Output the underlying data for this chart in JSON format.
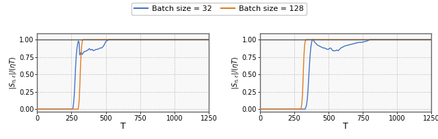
{
  "legend_labels": [
    "Batch size = 32",
    "Batch size = 128"
  ],
  "xlabel": "T",
  "xlim": [
    0,
    1250
  ],
  "yticks": [
    0.0,
    0.25,
    0.5,
    0.75,
    1.0
  ],
  "xticks": [
    0,
    250,
    500,
    750,
    1000,
    1250
  ],
  "left_blue_x": [
    0,
    259,
    260,
    265,
    270,
    275,
    280,
    285,
    290,
    295,
    300,
    305,
    310,
    315,
    320,
    325,
    330,
    335,
    340,
    345,
    350,
    360,
    370,
    380,
    390,
    400,
    410,
    420,
    430,
    440,
    450,
    460,
    470,
    480,
    490,
    500,
    520,
    600,
    700,
    800,
    900,
    1000,
    1100,
    1200,
    1250
  ],
  "left_blue_y": [
    0.0,
    0.0,
    0.01,
    0.08,
    0.2,
    0.4,
    0.62,
    0.78,
    0.88,
    0.94,
    0.98,
    0.96,
    0.78,
    0.8,
    0.82,
    0.79,
    0.79,
    0.81,
    0.82,
    0.83,
    0.83,
    0.84,
    0.85,
    0.87,
    0.85,
    0.86,
    0.84,
    0.85,
    0.86,
    0.86,
    0.87,
    0.88,
    0.88,
    0.9,
    0.93,
    0.97,
    1.0,
    1.0,
    1.0,
    1.0,
    1.0,
    1.0,
    1.0,
    1.0,
    1.0
  ],
  "left_orange_x": [
    0,
    299,
    300,
    305,
    310,
    315,
    320,
    325,
    330,
    335,
    340,
    350,
    360,
    400,
    500,
    1250
  ],
  "left_orange_y": [
    0.0,
    0.0,
    0.02,
    0.1,
    0.3,
    0.58,
    0.8,
    0.93,
    0.99,
    1.0,
    1.0,
    1.0,
    1.0,
    1.0,
    1.0,
    1.0
  ],
  "right_blue_x": [
    0,
    329,
    330,
    335,
    340,
    345,
    350,
    355,
    360,
    365,
    370,
    375,
    380,
    385,
    390,
    395,
    400,
    410,
    420,
    430,
    440,
    450,
    460,
    470,
    480,
    490,
    500,
    510,
    520,
    530,
    540,
    550,
    560,
    570,
    580,
    590,
    600,
    620,
    640,
    660,
    680,
    700,
    720,
    740,
    760,
    780,
    800,
    900,
    1000,
    1100,
    1200,
    1250
  ],
  "right_blue_y": [
    0.0,
    0.0,
    0.01,
    0.03,
    0.07,
    0.15,
    0.28,
    0.45,
    0.62,
    0.77,
    0.88,
    0.95,
    0.99,
    1.0,
    1.0,
    0.97,
    0.96,
    0.94,
    0.92,
    0.91,
    0.9,
    0.89,
    0.88,
    0.88,
    0.87,
    0.86,
    0.86,
    0.88,
    0.87,
    0.84,
    0.84,
    0.84,
    0.85,
    0.84,
    0.86,
    0.88,
    0.89,
    0.91,
    0.92,
    0.93,
    0.94,
    0.95,
    0.96,
    0.96,
    0.97,
    0.98,
    1.0,
    1.0,
    1.0,
    1.0,
    1.0,
    1.0
  ],
  "right_orange_x": [
    0,
    299,
    300,
    305,
    310,
    315,
    320,
    325,
    330,
    335,
    340,
    350,
    400,
    500,
    1250
  ],
  "right_orange_y": [
    0.0,
    0.0,
    0.02,
    0.08,
    0.22,
    0.5,
    0.76,
    0.92,
    0.98,
    1.0,
    1.0,
    1.0,
    1.0,
    1.0,
    1.0
  ],
  "line_color_blue": "#4472c4",
  "line_color_orange": "#e07b20",
  "grid_color": "#aaaaaa",
  "bg_color": "#f8f8f8",
  "spine_color": "#555555",
  "linewidth": 1.0
}
